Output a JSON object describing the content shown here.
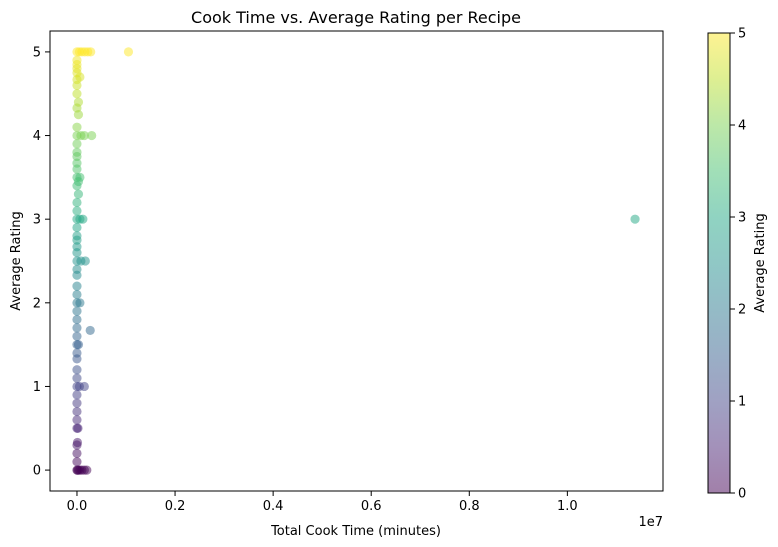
{
  "chart_data": {
    "type": "scatter",
    "title": "Cook Time vs. Average Rating per Recipe",
    "xlabel": "Total Cook Time (minutes)",
    "ylabel": "Average Rating",
    "x_offset_label": "1e7",
    "xlim": [
      -550000,
      11950000
    ],
    "ylim": [
      -0.25,
      5.25
    ],
    "x_ticks": [
      0,
      2000000,
      4000000,
      6000000,
      8000000,
      10000000
    ],
    "x_tick_labels": [
      "0.0",
      "0.2",
      "0.4",
      "0.6",
      "0.8",
      "1.0"
    ],
    "y_ticks": [
      0,
      1,
      2,
      3,
      4,
      5
    ],
    "y_tick_labels": [
      "0",
      "1",
      "2",
      "3",
      "4",
      "5"
    ],
    "grid": false,
    "colormap": "viridis",
    "marker_alpha": 0.5,
    "colorbar": {
      "label": "Average Rating",
      "range": [
        0,
        5
      ],
      "ticks": [
        0,
        1,
        2,
        3,
        4,
        5
      ],
      "tick_labels": [
        "0",
        "1",
        "2",
        "3",
        "4",
        "5"
      ]
    },
    "points": [
      {
        "x": 0,
        "y": 0
      },
      {
        "x": 10000,
        "y": 0
      },
      {
        "x": 30000,
        "y": 0
      },
      {
        "x": 60000,
        "y": 0
      },
      {
        "x": 100000,
        "y": 0
      },
      {
        "x": 150000,
        "y": 0
      },
      {
        "x": 200000,
        "y": 0
      },
      {
        "x": 0,
        "y": 0.1
      },
      {
        "x": 0,
        "y": 0.2
      },
      {
        "x": 0,
        "y": 0.3
      },
      {
        "x": 10000,
        "y": 0.33
      },
      {
        "x": 0,
        "y": 0.5
      },
      {
        "x": 20000,
        "y": 0.5
      },
      {
        "x": 0,
        "y": 0.6
      },
      {
        "x": 0,
        "y": 0.7
      },
      {
        "x": 0,
        "y": 0.8
      },
      {
        "x": 0,
        "y": 0.9
      },
      {
        "x": 0,
        "y": 1.0
      },
      {
        "x": 50000,
        "y": 1.0
      },
      {
        "x": 150000,
        "y": 1.0
      },
      {
        "x": 0,
        "y": 1.1
      },
      {
        "x": 0,
        "y": 1.2
      },
      {
        "x": 0,
        "y": 1.33
      },
      {
        "x": 0,
        "y": 1.4
      },
      {
        "x": 0,
        "y": 1.5
      },
      {
        "x": 30000,
        "y": 1.5
      },
      {
        "x": 0,
        "y": 1.6
      },
      {
        "x": 270000,
        "y": 1.67
      },
      {
        "x": 0,
        "y": 1.7
      },
      {
        "x": 0,
        "y": 1.8
      },
      {
        "x": 0,
        "y": 1.9
      },
      {
        "x": 0,
        "y": 2.0
      },
      {
        "x": 60000,
        "y": 2.0
      },
      {
        "x": 0,
        "y": 2.1
      },
      {
        "x": 0,
        "y": 2.2
      },
      {
        "x": 0,
        "y": 2.33
      },
      {
        "x": 0,
        "y": 2.4
      },
      {
        "x": 0,
        "y": 2.5
      },
      {
        "x": 80000,
        "y": 2.5
      },
      {
        "x": 170000,
        "y": 2.5
      },
      {
        "x": 0,
        "y": 2.6
      },
      {
        "x": 0,
        "y": 2.67
      },
      {
        "x": 0,
        "y": 2.75
      },
      {
        "x": 0,
        "y": 2.8
      },
      {
        "x": 0,
        "y": 2.9
      },
      {
        "x": 0,
        "y": 3.0
      },
      {
        "x": 60000,
        "y": 3.0
      },
      {
        "x": 120000,
        "y": 3.0
      },
      {
        "x": 0,
        "y": 3.1
      },
      {
        "x": 0,
        "y": 3.2
      },
      {
        "x": 30000,
        "y": 3.3
      },
      {
        "x": 0,
        "y": 3.4
      },
      {
        "x": 30000,
        "y": 3.45
      },
      {
        "x": 0,
        "y": 3.5
      },
      {
        "x": 60000,
        "y": 3.5
      },
      {
        "x": 0,
        "y": 3.6
      },
      {
        "x": 0,
        "y": 3.67
      },
      {
        "x": 0,
        "y": 3.75
      },
      {
        "x": 0,
        "y": 3.8
      },
      {
        "x": 0,
        "y": 3.9
      },
      {
        "x": 0,
        "y": 4.0
      },
      {
        "x": 80000,
        "y": 4.0
      },
      {
        "x": 150000,
        "y": 4.0
      },
      {
        "x": 300000,
        "y": 4.0
      },
      {
        "x": 0,
        "y": 4.1
      },
      {
        "x": 30000,
        "y": 4.25
      },
      {
        "x": 0,
        "y": 4.33
      },
      {
        "x": 30000,
        "y": 4.4
      },
      {
        "x": 0,
        "y": 4.5
      },
      {
        "x": 0,
        "y": 4.6
      },
      {
        "x": 0,
        "y": 4.67
      },
      {
        "x": 60000,
        "y": 4.7
      },
      {
        "x": 0,
        "y": 4.75
      },
      {
        "x": 0,
        "y": 4.8
      },
      {
        "x": 0,
        "y": 4.85
      },
      {
        "x": 0,
        "y": 4.9
      },
      {
        "x": 0,
        "y": 5.0
      },
      {
        "x": 50000,
        "y": 5.0
      },
      {
        "x": 100000,
        "y": 5.0
      },
      {
        "x": 160000,
        "y": 5.0
      },
      {
        "x": 220000,
        "y": 5.0
      },
      {
        "x": 280000,
        "y": 5.0
      },
      {
        "x": 1050000,
        "y": 5.0
      },
      {
        "x": 11380000,
        "y": 3.0
      }
    ]
  }
}
